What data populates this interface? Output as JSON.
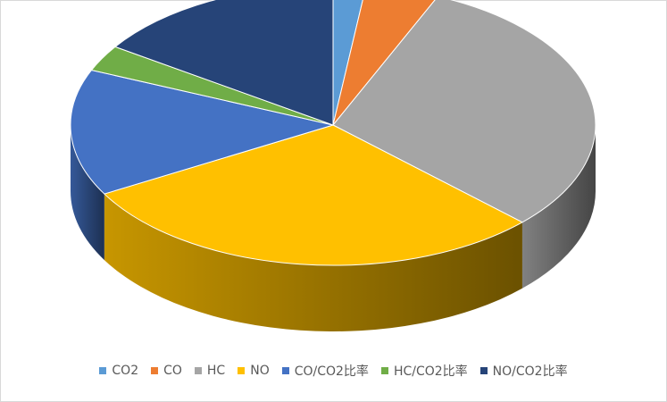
{
  "chart_data": {
    "type": "pie",
    "style": "3d-pie",
    "title": "",
    "categories": [
      "CO2",
      "CO",
      "HC",
      "NO",
      "CO/CO2比率",
      "HC/CO2比率",
      "NO/CO2比率"
    ],
    "values": [
      2.0,
      4.5,
      30.5,
      29.5,
      14.5,
      3.0,
      15.5
    ],
    "colors": [
      "#5B9BD5",
      "#ED7D31",
      "#A5A5A5",
      "#FFC000",
      "#4472C4",
      "#70AD47",
      "#264478"
    ],
    "legend_position": "bottom",
    "legend": [
      "CO2",
      "CO",
      "HC",
      "NO",
      "CO/CO2比率",
      "HC/CO2比率",
      "NO/CO2比率"
    ]
  }
}
